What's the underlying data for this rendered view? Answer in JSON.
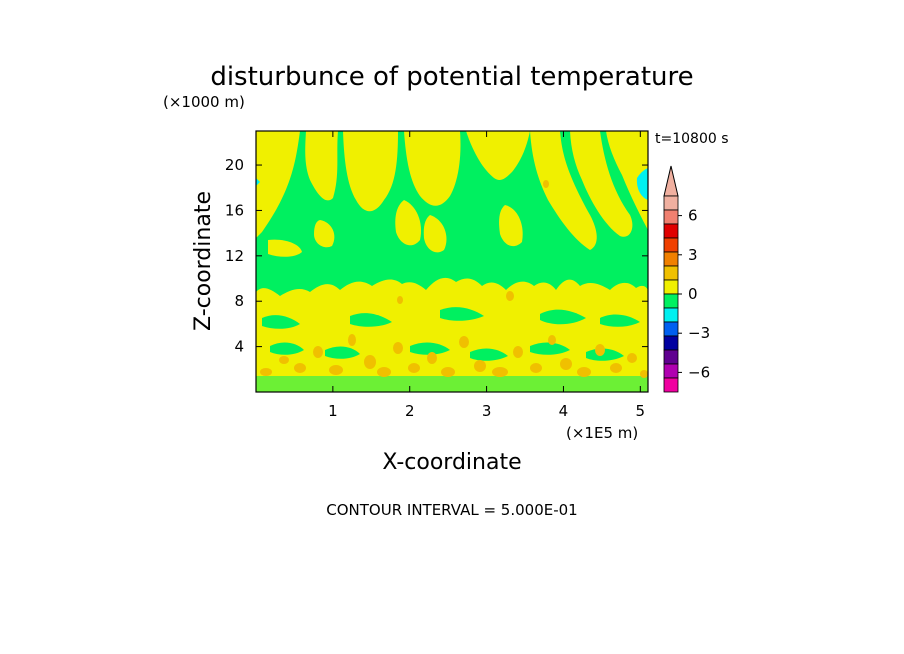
{
  "chart_data": {
    "type": "heatmap",
    "title": "disturbunce of potential temperature",
    "ylabel": "Z-coordinate",
    "xlabel": "X-coordinate",
    "y_unit": "(×1000 m)",
    "x_unit": "(×1E5 m)",
    "time_label": "t=10800 s",
    "footer": "CONTOUR INTERVAL = 5.000E-01",
    "xlim": [
      0.0,
      5.1
    ],
    "ylim": [
      0,
      23
    ],
    "x_ticks": [
      "1",
      "2",
      "3",
      "4",
      "5"
    ],
    "x_tick_values": [
      1,
      2,
      3,
      4,
      5
    ],
    "y_ticks": [
      "4",
      "8",
      "12",
      "16",
      "20"
    ],
    "y_tick_values": [
      4,
      8,
      12,
      16,
      20
    ],
    "colorbar": {
      "labels": [
        "6",
        "3",
        "0",
        "-3",
        "-6"
      ],
      "label_levels": [
        6,
        3,
        0,
        -3,
        -6
      ],
      "bands": [
        {
          "color": "#f0b0a0"
        },
        {
          "color": "#f08070"
        },
        {
          "color": "#e00000"
        },
        {
          "color": "#f04000"
        },
        {
          "color": "#f08000"
        },
        {
          "color": "#f0c000"
        },
        {
          "color": "#f0f000"
        },
        {
          "color": "#00f060"
        },
        {
          "color": "#00f0f0"
        },
        {
          "color": "#0060f0"
        },
        {
          "color": "#0000a0"
        },
        {
          "color": "#600090"
        },
        {
          "color": "#b000b0"
        },
        {
          "color": "#f000a0"
        }
      ]
    },
    "field_colors": {
      "yellow": "#f0f000",
      "green": "#00f060",
      "orange": "#f0c000",
      "cyan": "#00f0f0"
    }
  }
}
